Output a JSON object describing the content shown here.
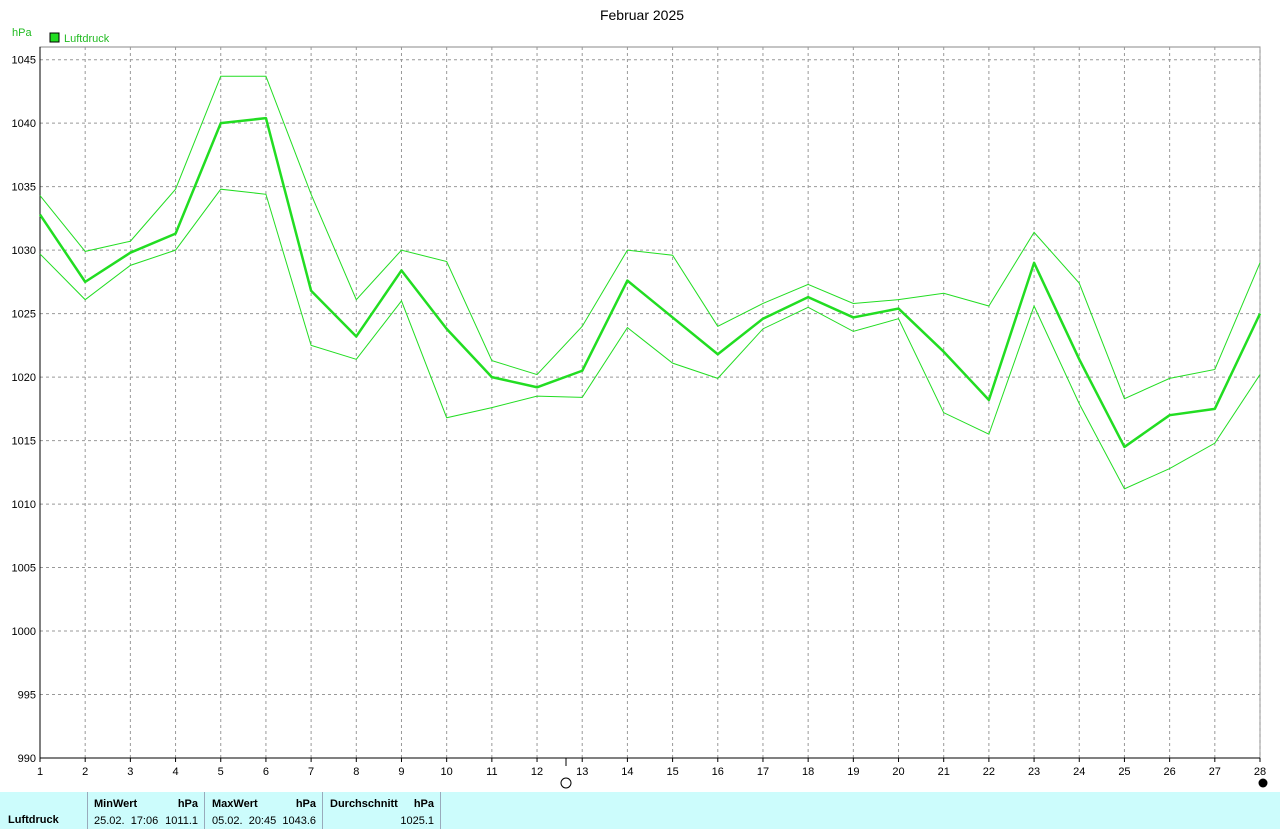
{
  "chart_data": {
    "type": "line",
    "title": "Februar 2025",
    "y_label": "hPa",
    "x": [
      1,
      2,
      3,
      4,
      5,
      6,
      7,
      8,
      9,
      10,
      11,
      12,
      13,
      14,
      15,
      16,
      17,
      18,
      19,
      20,
      21,
      22,
      23,
      24,
      25,
      26,
      27,
      28
    ],
    "xlim": [
      1,
      28
    ],
    "xticks": [
      1,
      2,
      3,
      4,
      5,
      6,
      7,
      8,
      9,
      10,
      11,
      12,
      13,
      14,
      15,
      16,
      17,
      18,
      19,
      20,
      21,
      22,
      23,
      24,
      25,
      26,
      27,
      28
    ],
    "ylim": [
      990,
      1046
    ],
    "yticks": [
      990,
      995,
      1000,
      1005,
      1010,
      1015,
      1020,
      1025,
      1030,
      1035,
      1040,
      1045
    ],
    "grid": true,
    "legend": "top-left",
    "series": [
      {
        "name": "Luftdruck",
        "color": "#22dd22",
        "values": [
          1032.8,
          1027.5,
          1029.8,
          1031.3,
          1040.0,
          1040.4,
          1026.8,
          1023.2,
          1028.4,
          1023.8,
          1020.0,
          1019.2,
          1020.5,
          1027.6,
          1024.7,
          1021.8,
          1024.6,
          1026.3,
          1024.7,
          1025.4,
          1022.0,
          1018.2,
          1029.0,
          1021.4,
          1014.5,
          1017.0,
          1017.5,
          1025.0
        ],
        "high": [
          1034.3,
          1029.9,
          1030.7,
          1034.8,
          1043.7,
          1043.7,
          1034.4,
          1026.1,
          1030.0,
          1029.1,
          1021.3,
          1020.2,
          1024.0,
          1030.0,
          1029.6,
          1024.0,
          1025.8,
          1027.3,
          1025.8,
          1026.1,
          1026.6,
          1025.6,
          1031.4,
          1027.4,
          1018.3,
          1019.9,
          1020.6,
          1029.0
        ],
        "low": [
          1029.7,
          1026.1,
          1028.8,
          1030.0,
          1034.8,
          1034.4,
          1022.5,
          1021.4,
          1026.0,
          1016.8,
          1017.6,
          1018.5,
          1018.4,
          1023.9,
          1021.1,
          1019.9,
          1023.8,
          1025.5,
          1023.6,
          1024.6,
          1017.2,
          1015.5,
          1025.6,
          1017.9,
          1011.2,
          1012.8,
          1014.8,
          1020.2
        ]
      }
    ]
  },
  "table": {
    "name": "Luftdruck",
    "columns": [
      {
        "header": "MinWert",
        "unit": "hPa",
        "time": "25.02.  17:06",
        "value": "1011.1"
      },
      {
        "header": "MaxWert",
        "unit": "hPa",
        "time": "05.02.  20:45",
        "value": "1043.6"
      },
      {
        "header": "Durchschnitt",
        "unit": "hPa",
        "value": "1025.1"
      }
    ]
  }
}
